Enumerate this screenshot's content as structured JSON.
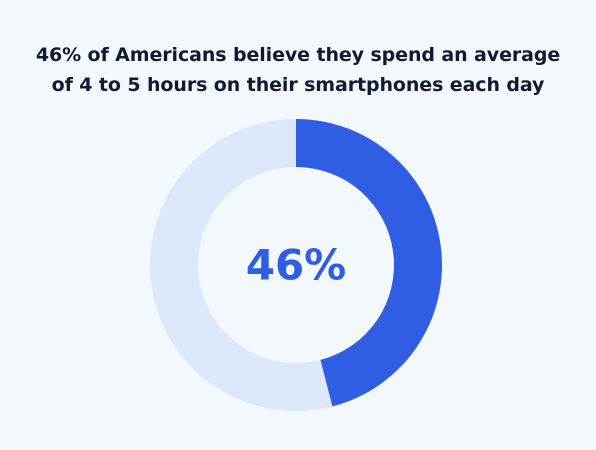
{
  "chart_data": {
    "type": "pie",
    "title_lines": [
      "46% of Americans believe they spend an average",
      "of 4 to 5 hours on their smartphones each day"
    ],
    "slices": [
      {
        "value": 46,
        "color": "#2f5ee3"
      },
      {
        "value": 54,
        "color": "#dce7fa"
      }
    ],
    "center_label": "46%",
    "center_label_color": "#2f5ee3",
    "background_color": "#f3f8fd",
    "title_color": "#111a33"
  }
}
